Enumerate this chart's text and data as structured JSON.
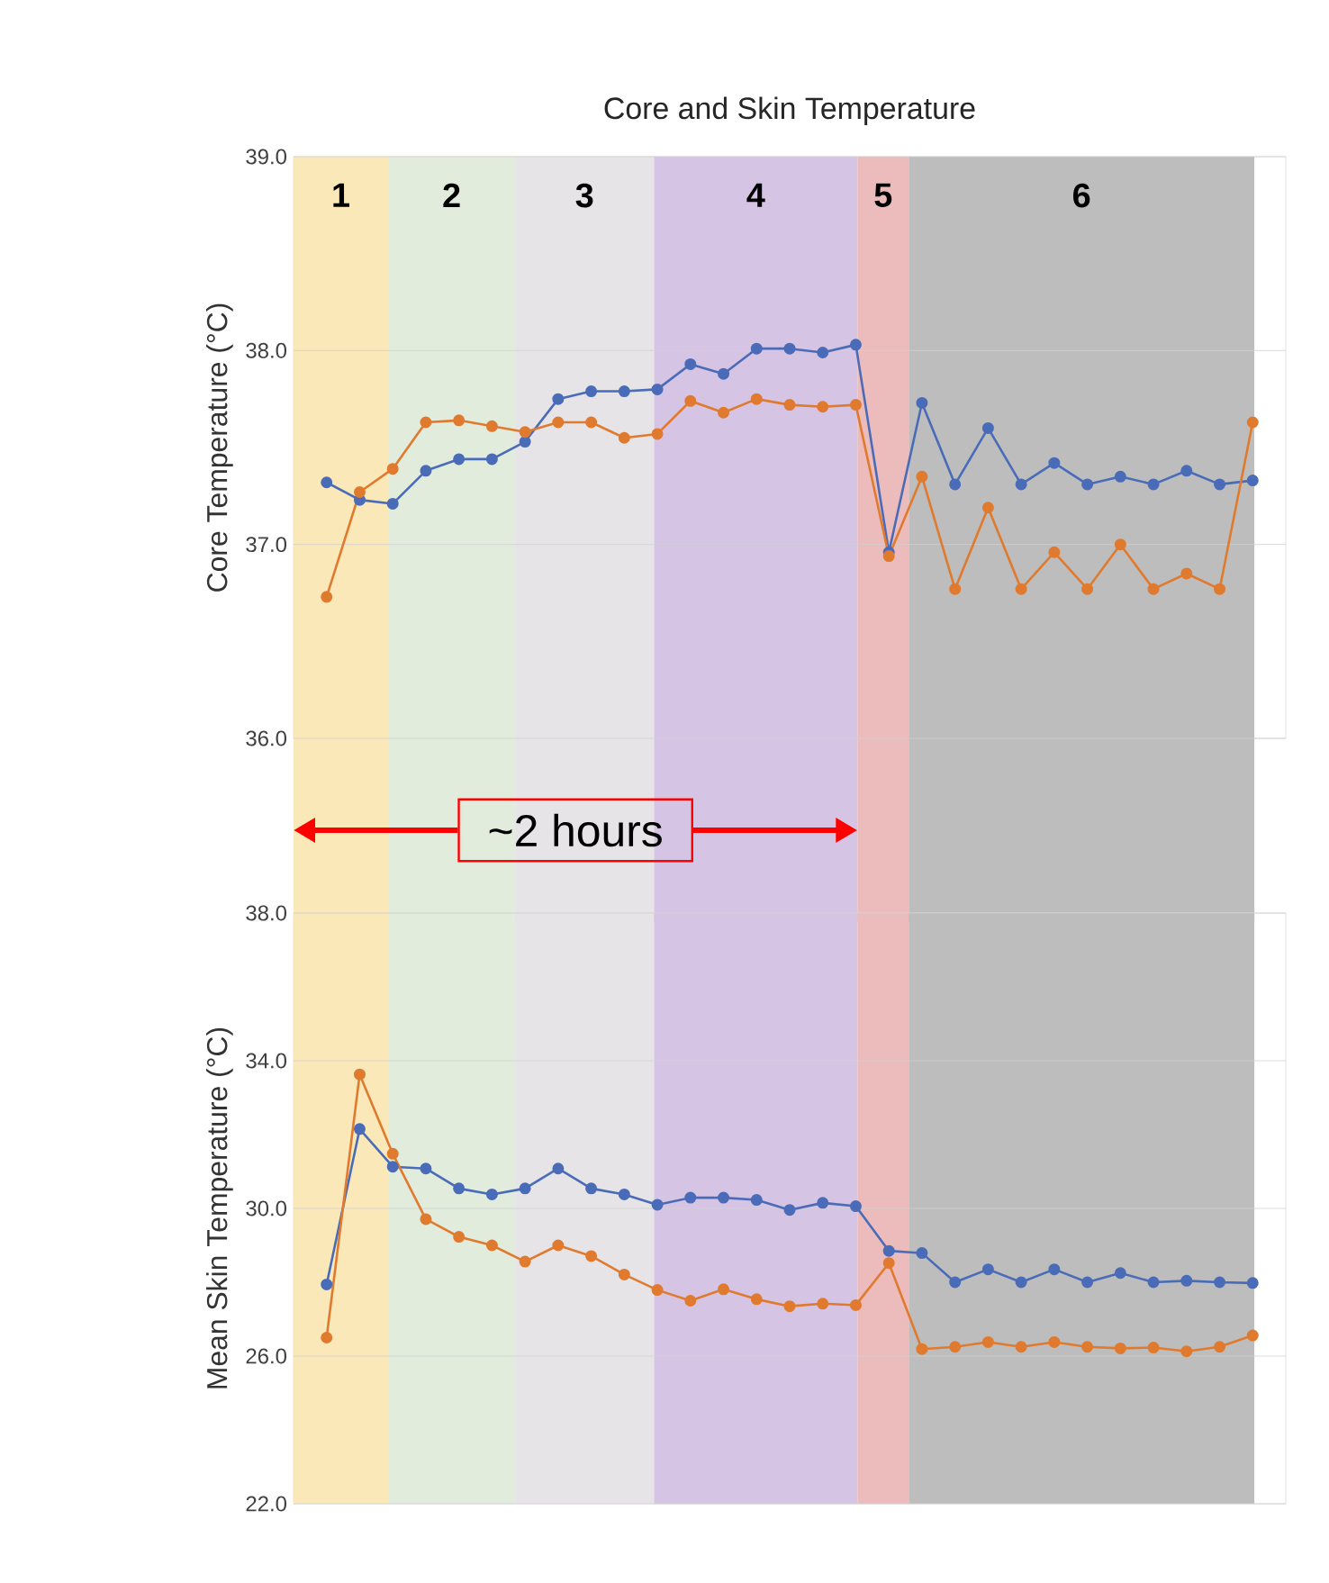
{
  "chart_data": [
    {
      "type": "line",
      "title": "Core and Skin Temperature",
      "ylabel": "Core Temperature (°C)",
      "categories": [
        null,
        null,
        null,
        null,
        null,
        null,
        null,
        null,
        null,
        null,
        null,
        null,
        null,
        null,
        null,
        null,
        null,
        null,
        null,
        null,
        null,
        null,
        null,
        null,
        null,
        null,
        null,
        null,
        null
      ],
      "series": [
        {
          "color": "#4a6cb8",
          "values": [
            37.32,
            37.23,
            37.21,
            37.38,
            37.44,
            37.44,
            37.53,
            37.75,
            37.79,
            37.79,
            37.8,
            37.93,
            37.88,
            38.01,
            38.01,
            37.99,
            38.03,
            36.96,
            37.73,
            37.31,
            37.6,
            37.31,
            37.42,
            37.31,
            37.35,
            37.31,
            37.38,
            37.31,
            37.33
          ]
        },
        {
          "color": "#e07a2e",
          "values": [
            36.73,
            37.27,
            37.39,
            37.63,
            37.64,
            37.61,
            37.58,
            37.63,
            37.63,
            37.55,
            37.57,
            37.74,
            37.68,
            37.75,
            37.72,
            37.71,
            37.72,
            36.94,
            37.35,
            36.77,
            37.19,
            36.77,
            36.96,
            36.77,
            37.0,
            36.77,
            36.85,
            36.77,
            37.63
          ]
        }
      ],
      "ylim": [
        36,
        39
      ],
      "yticks": [
        {
          "value": 36,
          "label": "36.0"
        },
        {
          "value": 37,
          "label": "37.0"
        },
        {
          "value": 38,
          "label": "38.0"
        },
        {
          "value": 39,
          "label": "39.0"
        }
      ],
      "annotations": [
        "1",
        "2",
        "3",
        "4",
        "5",
        "6",
        "~2 hours"
      ],
      "grid": "y",
      "marker": "circle",
      "line_style": "solid",
      "tick_labels": "y"
    },
    {
      "type": "line",
      "ylabel": "Mean Skin Temperature (°C)",
      "categories": [
        null,
        null,
        null,
        null,
        null,
        null,
        null,
        null,
        null,
        null,
        null,
        null,
        null,
        null,
        null,
        null,
        null,
        null,
        null,
        null,
        null,
        null,
        null,
        null,
        null,
        null,
        null,
        null,
        null
      ],
      "series": [
        {
          "color": "#4a6cb8",
          "values": [
            27.94,
            32.15,
            31.13,
            31.08,
            30.54,
            30.38,
            30.54,
            31.08,
            30.54,
            30.38,
            30.1,
            30.29,
            30.29,
            30.23,
            29.96,
            30.15,
            30.06,
            28.85,
            28.79,
            28.0,
            28.35,
            28.0,
            28.35,
            28.0,
            28.25,
            28.0,
            28.04,
            28.0,
            27.98
          ]
        },
        {
          "color": "#e07a2e",
          "values": [
            26.5,
            33.63,
            31.48,
            29.71,
            29.23,
            29.0,
            28.56,
            29.0,
            28.71,
            28.21,
            27.79,
            27.5,
            27.81,
            27.54,
            27.35,
            27.42,
            27.38,
            28.52,
            26.19,
            26.25,
            26.38,
            26.25,
            26.38,
            26.25,
            26.21,
            26.23,
            26.13,
            26.25,
            26.56
          ]
        }
      ],
      "ylim": [
        22,
        38
      ],
      "yticks": [
        {
          "value": 22,
          "label": "22.0"
        },
        {
          "value": 26,
          "label": "26.0"
        },
        {
          "value": 30,
          "label": "30.0"
        },
        {
          "value": 34,
          "label": "34.0"
        },
        {
          "value": 38,
          "label": "38.0"
        }
      ],
      "grid": "y",
      "marker": "circle",
      "line_style": "solid",
      "tick_labels": "y"
    }
  ]
}
